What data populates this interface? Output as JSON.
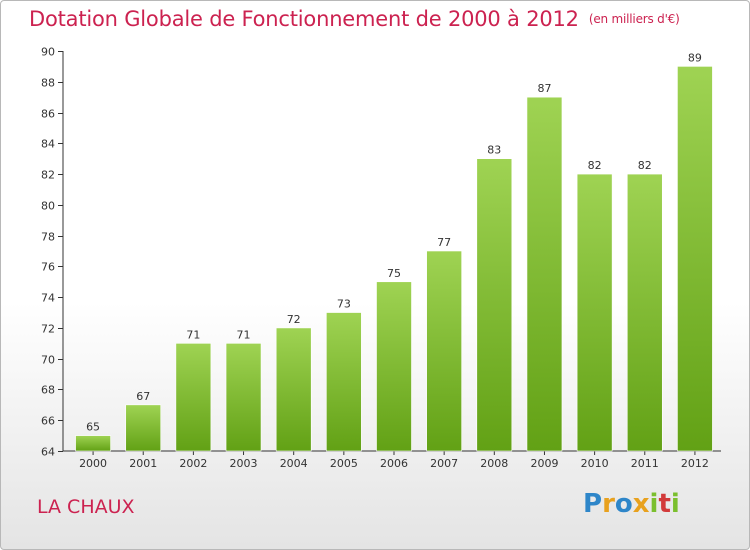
{
  "title": "Dotation Globale de Fonctionnement de 2000 à 2012",
  "subtitle": "(en milliers d'€)",
  "commune": "LA CHAUX",
  "logo": {
    "letters": [
      "P",
      "r",
      "o",
      "x",
      "i",
      "t",
      "i"
    ]
  },
  "chart_data": {
    "type": "bar",
    "title": "Dotation Globale de Fonctionnement de 2000 à 2012",
    "subtitle": "(en milliers d'€)",
    "categories": [
      "2000",
      "2001",
      "2002",
      "2003",
      "2004",
      "2005",
      "2006",
      "2007",
      "2008",
      "2009",
      "2010",
      "2011",
      "2012"
    ],
    "values": [
      65,
      67,
      71,
      71,
      72,
      73,
      75,
      77,
      83,
      87,
      82,
      82,
      89
    ],
    "ylim": [
      64,
      90
    ],
    "yticks": [
      64,
      66,
      68,
      70,
      72,
      74,
      76,
      78,
      80,
      82,
      84,
      86,
      88,
      90
    ],
    "grid": false,
    "colors": {
      "bar_top": "#9fd353",
      "bar_bottom": "#62a115",
      "title": "#cc2250",
      "axis": "#333333"
    }
  }
}
